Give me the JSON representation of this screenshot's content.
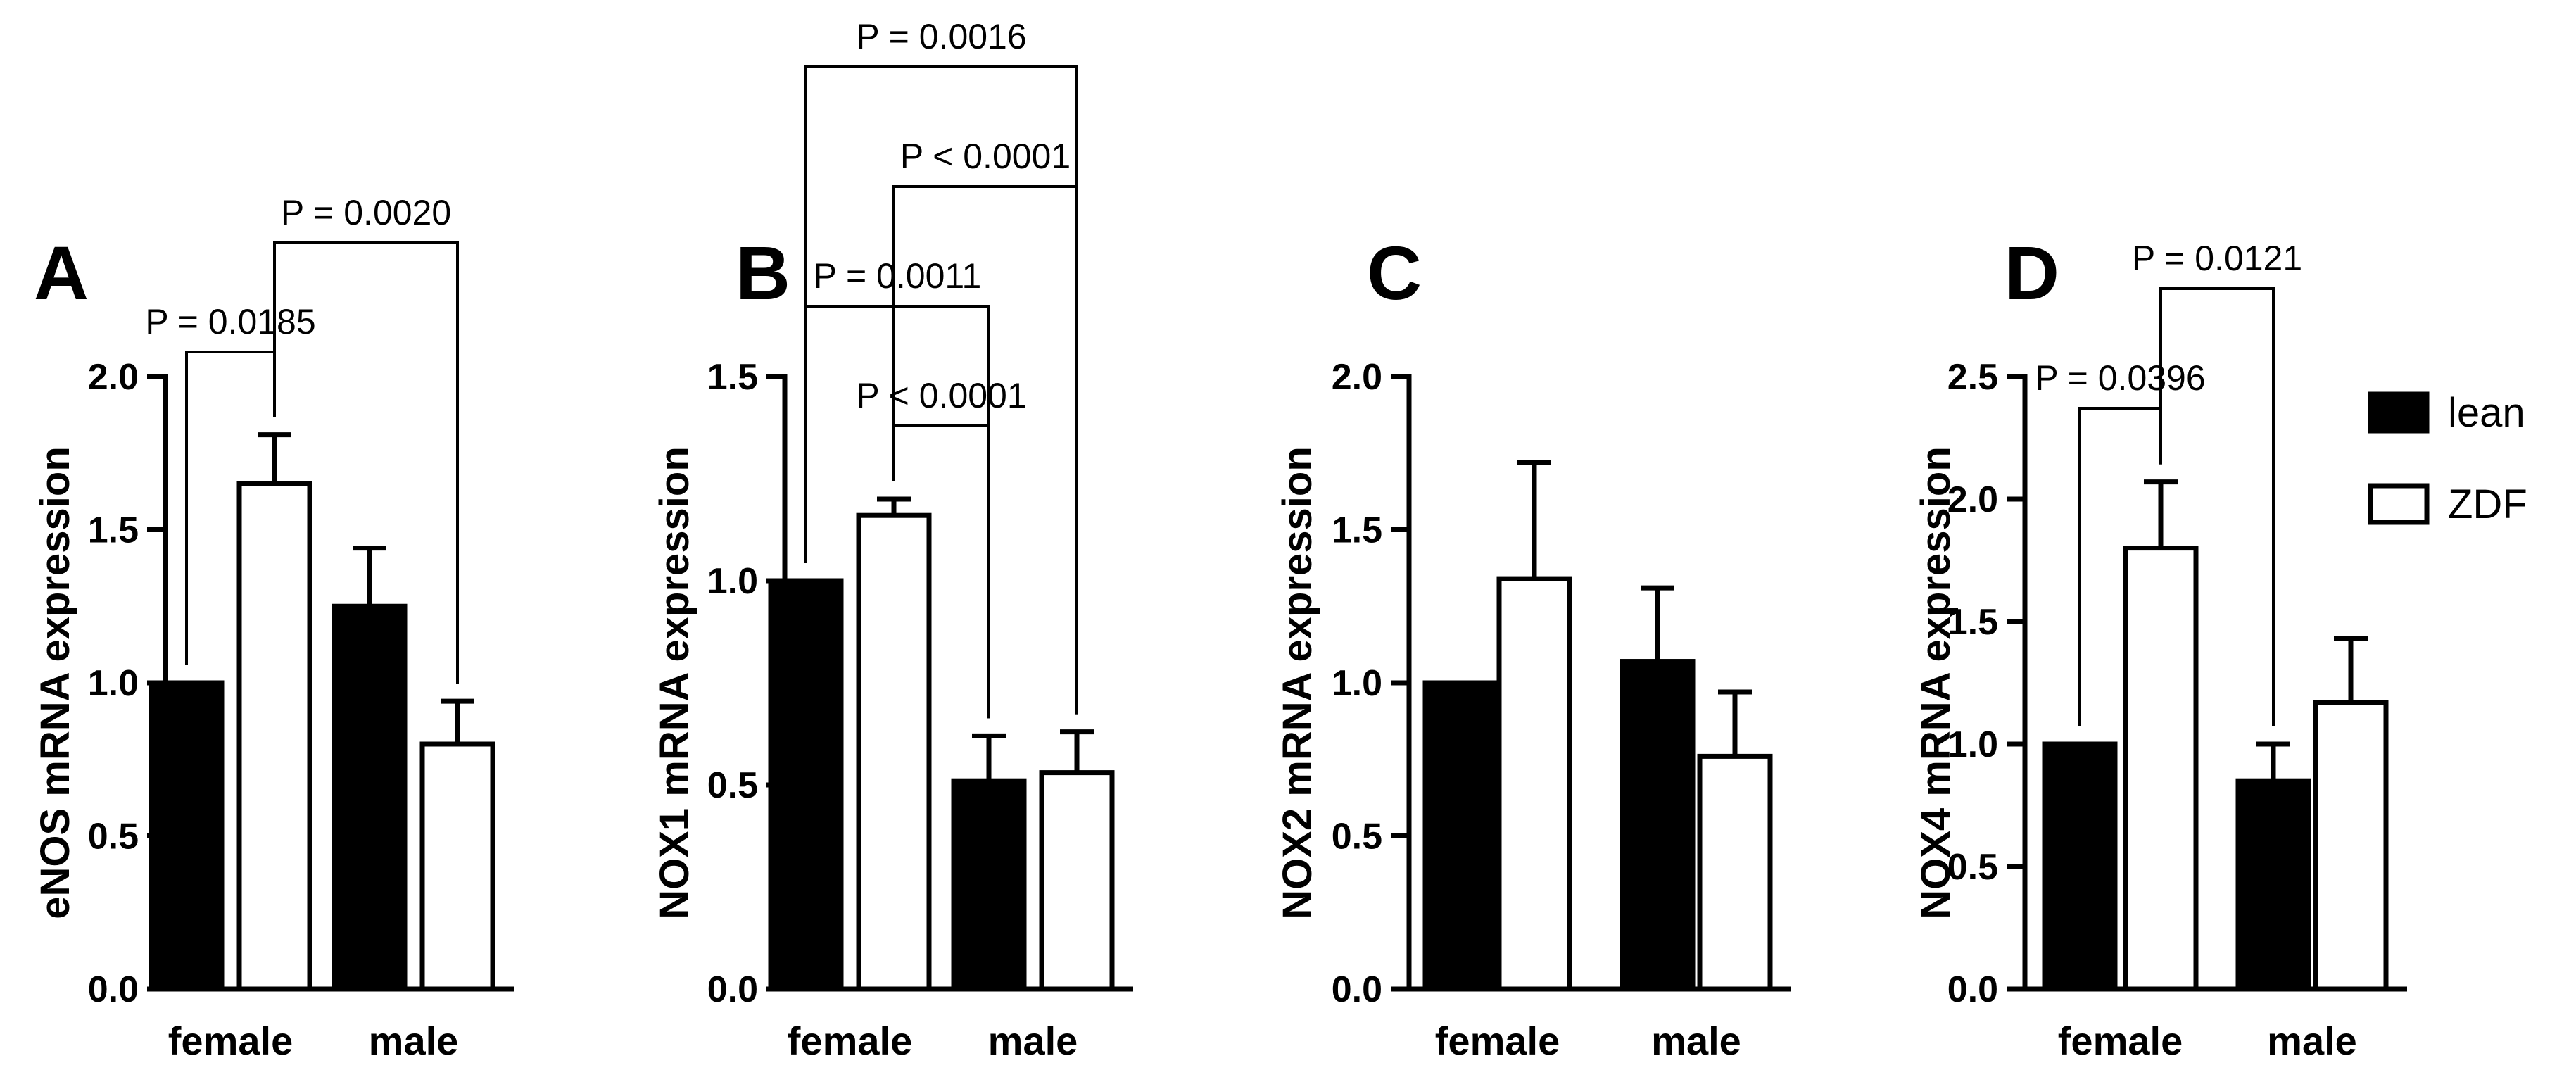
{
  "chart_data": [
    {
      "type": "bar",
      "panel": "A",
      "ylabel": "eNOS mRNA expression",
      "categories": [
        "female",
        "male"
      ],
      "ylim": [
        0,
        2.0
      ],
      "yticks": [
        "0.0",
        "0.5",
        "1.0",
        "1.5",
        "2.0"
      ],
      "series": [
        {
          "name": "lean",
          "values": [
            1.0,
            1.25
          ],
          "errors": [
            0,
            0.19
          ]
        },
        {
          "name": "ZDF",
          "values": [
            1.65,
            0.8
          ],
          "errors": [
            0.16,
            0.14
          ]
        }
      ],
      "annotations": [
        {
          "text": "P = 0.0185",
          "from": [
            0,
            0
          ],
          "to": [
            0,
            1
          ]
        },
        {
          "text": "P = 0.0020",
          "from": [
            0,
            1
          ],
          "to": [
            1,
            1
          ]
        }
      ]
    },
    {
      "type": "bar",
      "panel": "B",
      "ylabel": "NOX1 mRNA expression",
      "categories": [
        "female",
        "male"
      ],
      "ylim": [
        0,
        1.5
      ],
      "yticks": [
        "0.0",
        "0.5",
        "1.0",
        "1.5"
      ],
      "series": [
        {
          "name": "lean",
          "values": [
            1.0,
            0.51
          ],
          "errors": [
            0,
            0.11
          ]
        },
        {
          "name": "ZDF",
          "values": [
            1.16,
            0.53
          ],
          "errors": [
            0.04,
            0.1
          ]
        }
      ],
      "annotations": [
        {
          "text": "P < 0.0001",
          "from": [
            0,
            1
          ],
          "to": [
            1,
            0
          ]
        },
        {
          "text": "P = 0.0011",
          "from": [
            0,
            0
          ],
          "to": [
            1,
            0
          ]
        },
        {
          "text": "P < 0.0001",
          "from": [
            0,
            1
          ],
          "to": [
            1,
            1
          ]
        },
        {
          "text": "P = 0.0016",
          "from": [
            0,
            0
          ],
          "to": [
            1,
            1
          ]
        }
      ]
    },
    {
      "type": "bar",
      "panel": "C",
      "ylabel": "NOX2 mRNA expression",
      "categories": [
        "female",
        "male"
      ],
      "ylim": [
        0,
        2.0
      ],
      "yticks": [
        "0.0",
        "0.5",
        "1.0",
        "1.5",
        "2.0"
      ],
      "series": [
        {
          "name": "lean",
          "values": [
            1.0,
            1.07
          ],
          "errors": [
            0,
            0.24
          ]
        },
        {
          "name": "ZDF",
          "values": [
            1.34,
            0.76
          ],
          "errors": [
            0.38,
            0.21
          ]
        }
      ],
      "annotations": []
    },
    {
      "type": "bar",
      "panel": "D",
      "ylabel": "NOX4 mRNA expression",
      "categories": [
        "female",
        "male"
      ],
      "ylim": [
        0,
        2.5
      ],
      "yticks": [
        "0.0",
        "0.5",
        "1.0",
        "1.5",
        "2.0",
        "2.5"
      ],
      "series": [
        {
          "name": "lean",
          "values": [
            1.0,
            0.85
          ],
          "errors": [
            0,
            0.15
          ]
        },
        {
          "name": "ZDF",
          "values": [
            1.8,
            1.17
          ],
          "errors": [
            0.27,
            0.26
          ]
        }
      ],
      "annotations": [
        {
          "text": "P = 0.0396",
          "from": [
            0,
            0
          ],
          "to": [
            0,
            1
          ]
        },
        {
          "text": "P = 0.0121",
          "from": [
            0,
            1
          ],
          "to": [
            1,
            0
          ]
        }
      ]
    }
  ],
  "legend": {
    "placement": "right of panel D",
    "entries": [
      {
        "label": "lean",
        "fill": "#000000"
      },
      {
        "label": "ZDF",
        "fill": "#ffffff"
      }
    ]
  },
  "colors": {
    "lean": "#000000",
    "ZDF": "#ffffff",
    "stroke": "#000000"
  }
}
